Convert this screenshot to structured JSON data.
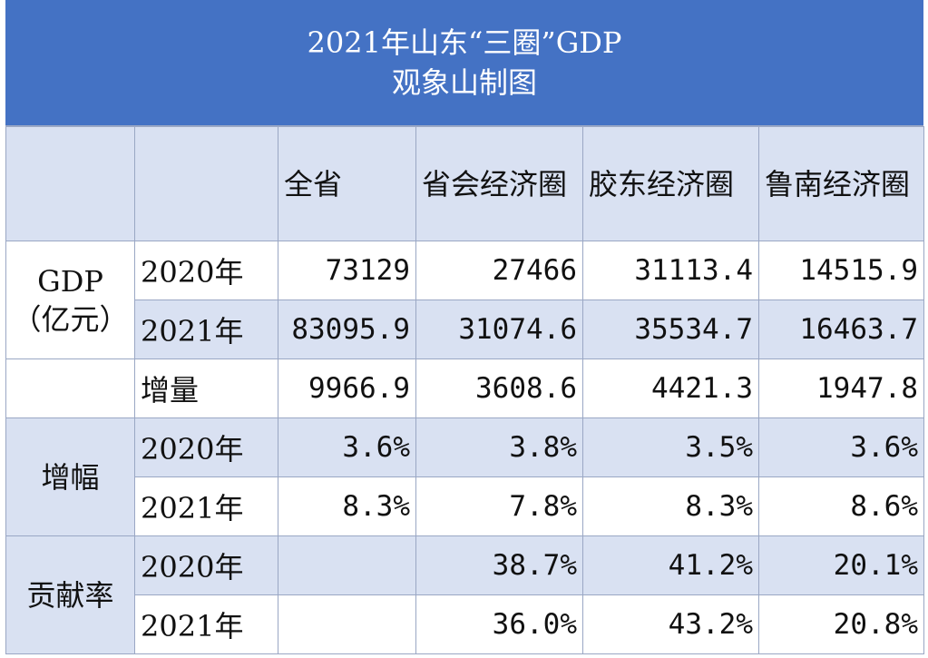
{
  "title": {
    "line1": "2021年山东“三圈”GDP",
    "line2": "观象山制图"
  },
  "columns": [
    "全省",
    "省会经济圈",
    "胶东经济圈",
    "鲁南经济圈"
  ],
  "groups": {
    "gdp": "GDP（亿元）",
    "growth": "增幅",
    "share": "贡献率"
  },
  "rows": [
    {
      "label": "2020年",
      "values": [
        "73129",
        "27466",
        "31113.4",
        "14515.9"
      ]
    },
    {
      "label": "2021年",
      "values": [
        "83095.9",
        "31074.6",
        "35534.7",
        "16463.7"
      ]
    },
    {
      "label": "增量",
      "values": [
        "9966.9",
        "3608.6",
        "4421.3",
        "1947.8"
      ]
    },
    {
      "label": "2020年",
      "values": [
        "3.6%",
        "3.8%",
        "3.5%",
        "3.6%"
      ]
    },
    {
      "label": "2021年",
      "values": [
        "8.3%",
        "7.8%",
        "8.3%",
        "8.6%"
      ]
    },
    {
      "label": "2020年",
      "values": [
        "",
        "38.7%",
        "41.2%",
        "20.1%"
      ]
    },
    {
      "label": "2021年",
      "values": [
        "",
        "36.0%",
        "43.2%",
        "20.8%"
      ]
    }
  ]
}
